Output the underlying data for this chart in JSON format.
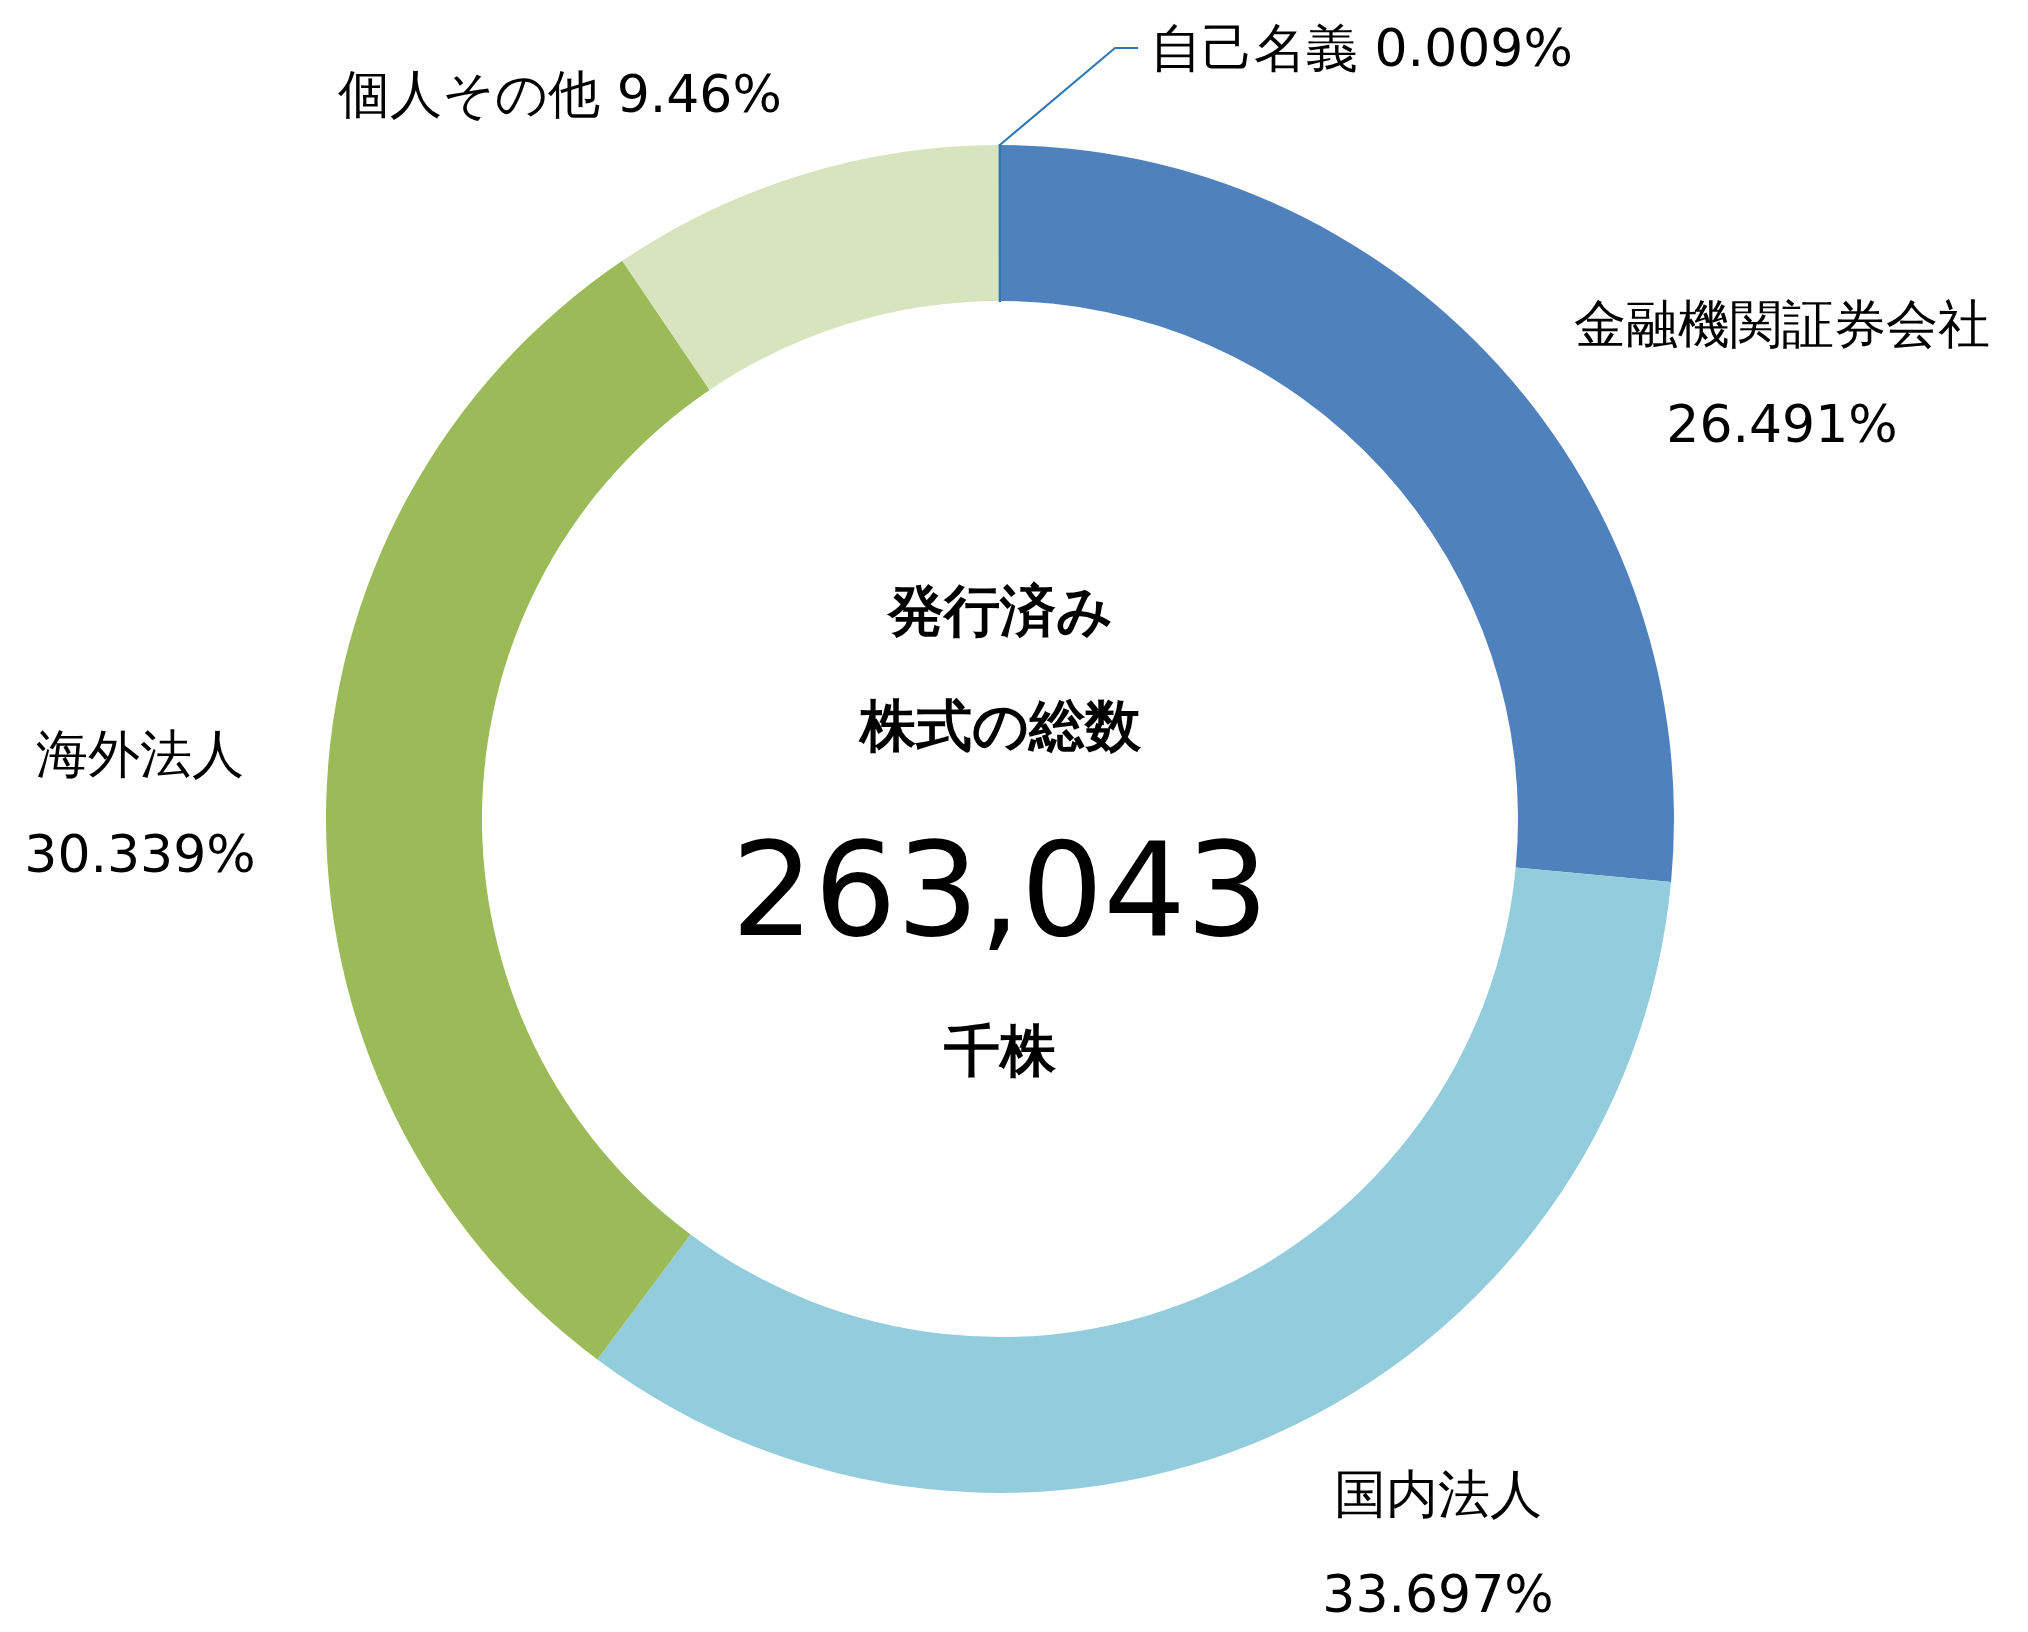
{
  "chart_data": {
    "type": "donut",
    "categories": [
      "金融機関証券会社",
      "国内法人",
      "海外法人",
      "個人その他",
      "自己名義"
    ],
    "values": [
      26.491,
      33.697,
      30.339,
      9.46,
      0.009
    ],
    "colors": [
      "#4f81bd",
      "#93cddd",
      "#9bbb59",
      "#d7e4bd",
      "#2e75b6"
    ],
    "value_labels": [
      "26.491%",
      "33.697%",
      "30.339%",
      "9.46%",
      "0.009%"
    ],
    "annotations": [
      "発行済み",
      "株式の総数",
      "263,043",
      "千株"
    ]
  }
}
